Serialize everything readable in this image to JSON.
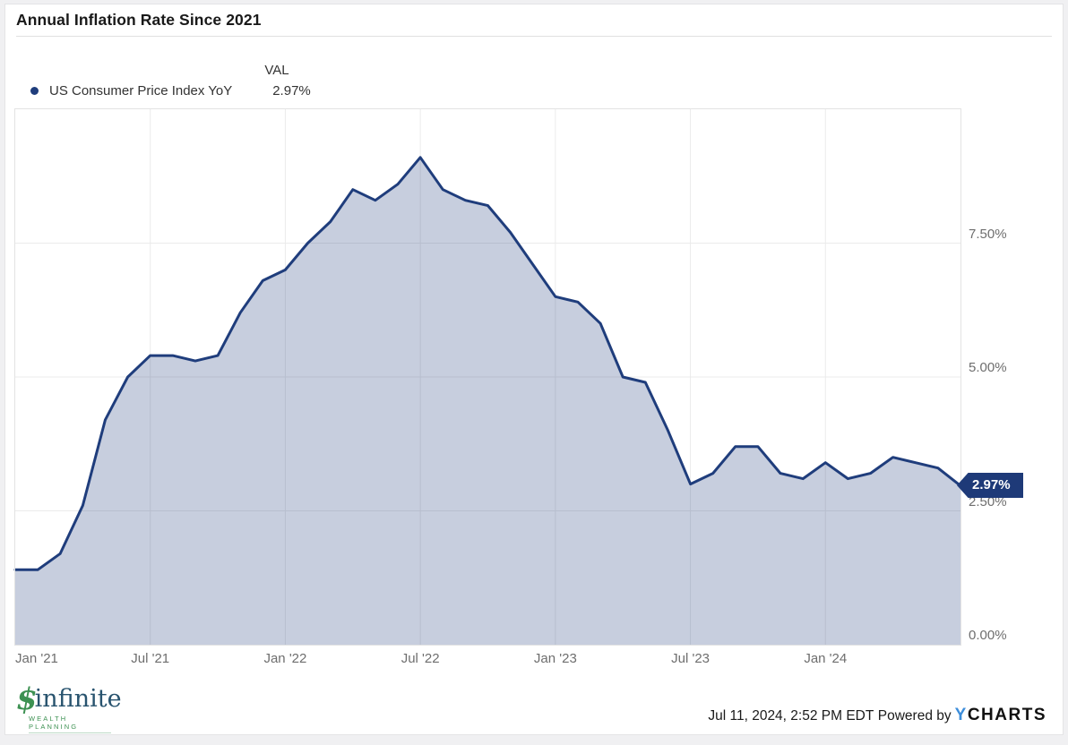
{
  "header": {
    "title": "Annual Inflation Rate Since 2021"
  },
  "legend": {
    "val_header": "VAL",
    "series_label": "US Consumer Price Index YoY",
    "series_value": "2.97%"
  },
  "chart_data": {
    "type": "area",
    "title": "Annual Inflation Rate Since 2021",
    "series_name": "US Consumer Price Index YoY",
    "unit": "percent YoY",
    "x": [
      "2020-12",
      "2021-01",
      "2021-02",
      "2021-03",
      "2021-04",
      "2021-05",
      "2021-06",
      "2021-07",
      "2021-08",
      "2021-09",
      "2021-10",
      "2021-11",
      "2021-12",
      "2022-01",
      "2022-02",
      "2022-03",
      "2022-04",
      "2022-05",
      "2022-06",
      "2022-07",
      "2022-08",
      "2022-09",
      "2022-10",
      "2022-11",
      "2022-12",
      "2023-01",
      "2023-02",
      "2023-03",
      "2023-04",
      "2023-05",
      "2023-06",
      "2023-07",
      "2023-08",
      "2023-09",
      "2023-10",
      "2023-11",
      "2023-12",
      "2024-01",
      "2024-02",
      "2024-03",
      "2024-04",
      "2024-05",
      "2024-06"
    ],
    "values": [
      1.4,
      1.4,
      1.7,
      2.6,
      4.2,
      5.0,
      5.4,
      5.4,
      5.3,
      5.4,
      6.2,
      6.8,
      7.0,
      7.5,
      7.9,
      8.5,
      8.3,
      8.6,
      9.1,
      8.5,
      8.3,
      8.2,
      7.7,
      7.1,
      6.5,
      6.4,
      6.0,
      5.0,
      4.9,
      4.0,
      3.0,
      3.2,
      3.7,
      3.7,
      3.2,
      3.1,
      3.4,
      3.1,
      3.2,
      3.5,
      3.4,
      3.3,
      2.97
    ],
    "last_value_label": "2.97%",
    "y_ticks": [
      {
        "label": "7.50%",
        "value": 7.5
      },
      {
        "label": "5.00%",
        "value": 5.0
      },
      {
        "label": "2.50%",
        "value": 2.5
      },
      {
        "label": "0.00%",
        "value": 0.0
      }
    ],
    "x_ticks": [
      {
        "label": "Jan '21",
        "index": 0
      },
      {
        "label": "Jul '21",
        "index": 6
      },
      {
        "label": "Jan '22",
        "index": 12
      },
      {
        "label": "Jul '22",
        "index": 18
      },
      {
        "label": "Jan '23",
        "index": 24
      },
      {
        "label": "Jul '23",
        "index": 30
      },
      {
        "label": "Jan '24",
        "index": 36
      }
    ],
    "ylim": [
      0,
      10
    ],
    "grid": true,
    "legend_position": "top-left",
    "colors": {
      "line": "#1f3d7c",
      "fill": "rgba(31,61,124,0.25)",
      "gridline": "#ebebeb",
      "plot_border": "#e3e3e3",
      "tick_text": "#6e6e6e",
      "badge_bg": "#1e3a78"
    }
  },
  "footer": {
    "logo_glyph": "$",
    "logo_name": "infinite",
    "logo_sub": "WEALTH PLANNING",
    "timestamp": "Jul 11, 2024, 2:52 PM EDT",
    "powered_by": "Powered by",
    "ycharts_y": "Y",
    "ycharts_rest": "CHARTS"
  }
}
